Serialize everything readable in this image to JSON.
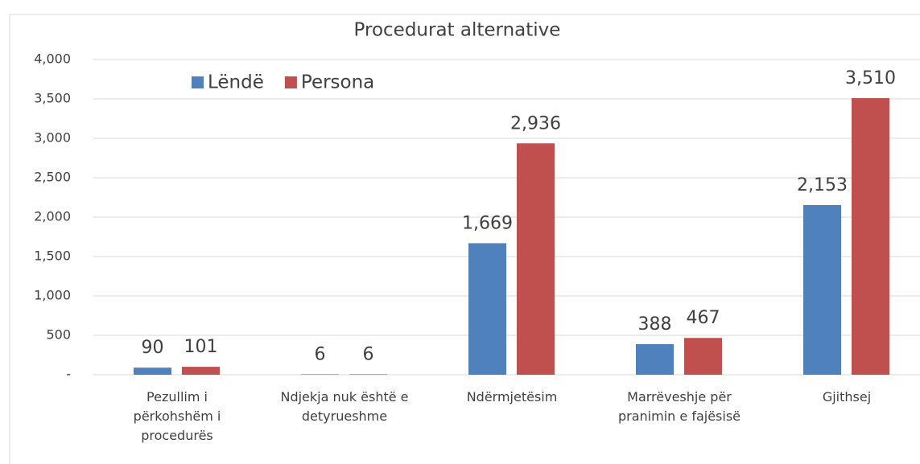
{
  "chart_data": {
    "type": "bar",
    "title": "Procedurat alternative",
    "categories": [
      "Pezullim i\npërkohshëm i\nprocedurës",
      "Ndjekja nuk është e\ndetyrueshme",
      "Ndërmjetësim",
      "Marrëveshje për\npranimin e fajësisë",
      "Gjithsej"
    ],
    "series": [
      {
        "name": "Lëndë",
        "color": "#4f81bd",
        "values": [
          90,
          6,
          1669,
          388,
          2153
        ],
        "value_labels": [
          "90",
          "6",
          "1,669",
          "388",
          "2,153"
        ]
      },
      {
        "name": "Persona",
        "color": "#c0504d",
        "values": [
          101,
          6,
          2936,
          467,
          3510
        ],
        "value_labels": [
          "101",
          "6",
          "2,936",
          "467",
          "3,510"
        ]
      }
    ],
    "ylim": [
      0,
      4000
    ],
    "yticks": [
      {
        "value": 0,
        "label": "-"
      },
      500,
      {
        "value": 1000,
        "label": "1,000"
      },
      {
        "value": 1500,
        "label": "1,500"
      },
      {
        "value": 2000,
        "label": "2,000"
      },
      {
        "value": 2500,
        "label": "2,500"
      },
      {
        "value": 3000,
        "label": "3,000"
      },
      {
        "value": 3500,
        "label": "3,500"
      },
      {
        "value": 4000,
        "label": "4,000"
      }
    ],
    "grid": true,
    "legend": "top-left"
  }
}
